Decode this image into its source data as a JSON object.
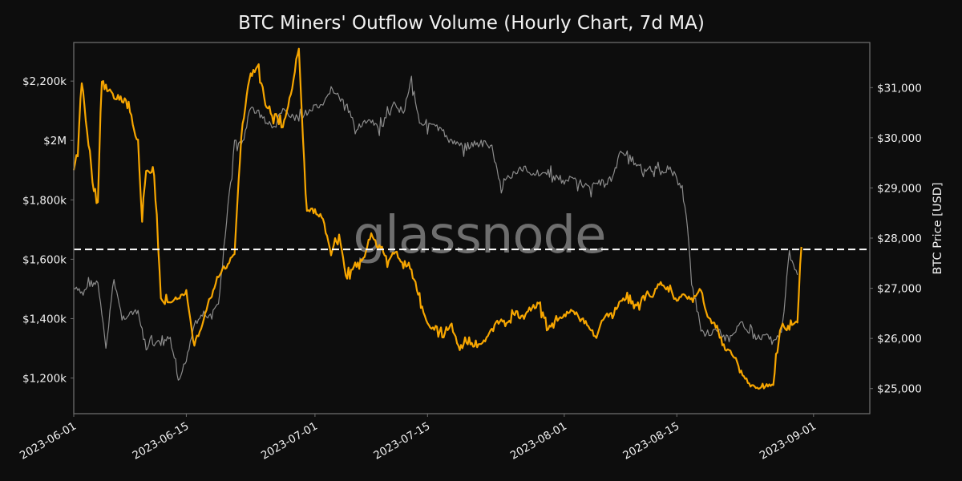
{
  "chart_data": {
    "type": "line",
    "title": "BTC Miners' Outflow Volume (Hourly Chart, 7d MA)",
    "xlabel": "",
    "ylabel_left": "",
    "ylabel_right": "BTC Price [USD]",
    "watermark": "glassnode",
    "x_tick_labels": [
      "2023-06-01",
      "2023-06-15",
      "2023-07-01",
      "2023-07-15",
      "2023-08-01",
      "2023-08-15",
      "2023-09-01"
    ],
    "y_left_tick_labels": [
      "$2,200k",
      "$2M",
      "$1,800k",
      "$1,600k",
      "$1,400k",
      "$1,200k"
    ],
    "y_left_tick_values": [
      2200000,
      2000000,
      1800000,
      1600000,
      1400000,
      1200000
    ],
    "y_right_tick_labels": [
      "$31,000",
      "$30,000",
      "$29,000",
      "$28,000",
      "$27,000",
      "$26,000",
      "$25,000"
    ],
    "y_right_tick_values": [
      31000,
      30000,
      29000,
      28000,
      27000,
      26000,
      25000
    ],
    "ylim_left": [
      1080000,
      2330000
    ],
    "ylim_right": [
      24500,
      31900
    ],
    "xlim": [
      "2023-06-01",
      "2023-09-08"
    ],
    "grid": false,
    "legend": "none",
    "reference_line": {
      "axis": "left",
      "value": 1633000,
      "style": "dashed",
      "color": "#ffffff"
    },
    "colors": {
      "background": "#0d0d0d",
      "outflow": "#f7a600",
      "price": "#8c8c8c",
      "frame": "#6b6b6b",
      "text": "#f0f0f0"
    },
    "series": [
      {
        "name": "Miners' Outflow Volume (7d MA)",
        "axis": "left",
        "unit": "USD",
        "color": "#f7a600",
        "x": [
          "2023-06-01",
          "2023-06-01T12",
          "2023-06-02",
          "2023-06-03",
          "2023-06-03T12",
          "2023-06-04",
          "2023-06-04T12",
          "2023-06-05",
          "2023-06-06",
          "2023-06-07",
          "2023-06-08",
          "2023-06-08T12",
          "2023-06-09",
          "2023-06-09T12",
          "2023-06-10",
          "2023-06-11",
          "2023-06-12",
          "2023-06-13",
          "2023-06-14",
          "2023-06-15",
          "2023-06-16",
          "2023-06-17",
          "2023-06-18",
          "2023-06-19",
          "2023-06-20",
          "2023-06-21",
          "2023-06-22",
          "2023-06-23",
          "2023-06-24",
          "2023-06-25",
          "2023-06-26",
          "2023-06-27",
          "2023-06-28",
          "2023-06-29",
          "2023-06-30",
          "2023-07-01",
          "2023-07-02",
          "2023-07-03",
          "2023-07-04",
          "2023-07-05",
          "2023-07-06",
          "2023-07-07",
          "2023-07-08",
          "2023-07-09",
          "2023-07-10",
          "2023-07-11",
          "2023-07-12",
          "2023-07-13",
          "2023-07-14",
          "2023-07-15",
          "2023-07-16",
          "2023-07-17",
          "2023-07-18",
          "2023-07-19",
          "2023-07-20",
          "2023-07-21",
          "2023-07-22",
          "2023-07-23",
          "2023-07-24",
          "2023-07-25",
          "2023-07-26",
          "2023-07-27",
          "2023-07-28",
          "2023-07-29",
          "2023-07-30",
          "2023-07-31",
          "2023-08-01",
          "2023-08-02",
          "2023-08-03",
          "2023-08-04",
          "2023-08-05",
          "2023-08-06",
          "2023-08-07",
          "2023-08-08",
          "2023-08-09",
          "2023-08-10",
          "2023-08-11",
          "2023-08-12",
          "2023-08-13",
          "2023-08-14",
          "2023-08-15",
          "2023-08-16",
          "2023-08-17",
          "2023-08-18",
          "2023-08-19",
          "2023-08-20",
          "2023-08-21",
          "2023-08-22",
          "2023-08-23",
          "2023-08-24",
          "2023-08-25",
          "2023-08-26",
          "2023-08-27",
          "2023-08-28",
          "2023-08-29",
          "2023-08-30",
          "2023-08-30T12"
        ],
        "values": [
          1900000,
          1950000,
          2200000,
          1960000,
          1820000,
          1790000,
          2200000,
          2180000,
          2150000,
          2140000,
          2120000,
          2030000,
          2000000,
          1730000,
          1900000,
          1880000,
          1460000,
          1450000,
          1470000,
          1490000,
          1310000,
          1380000,
          1470000,
          1540000,
          1580000,
          1620000,
          2050000,
          2220000,
          2250000,
          2110000,
          2080000,
          2050000,
          2150000,
          2310000,
          1770000,
          1760000,
          1740000,
          1620000,
          1680000,
          1540000,
          1580000,
          1600000,
          1680000,
          1640000,
          1600000,
          1620000,
          1590000,
          1560000,
          1480000,
          1380000,
          1370000,
          1340000,
          1380000,
          1300000,
          1320000,
          1300000,
          1320000,
          1370000,
          1390000,
          1380000,
          1420000,
          1400000,
          1440000,
          1450000,
          1360000,
          1400000,
          1410000,
          1430000,
          1400000,
          1380000,
          1340000,
          1410000,
          1410000,
          1460000,
          1460000,
          1450000,
          1470000,
          1480000,
          1520000,
          1500000,
          1460000,
          1480000,
          1460000,
          1500000,
          1400000,
          1370000,
          1300000,
          1280000,
          1220000,
          1180000,
          1160000,
          1180000,
          1180000,
          1380000,
          1360000,
          1390000,
          1650000
        ]
      },
      {
        "name": "BTC Price",
        "axis": "right",
        "unit": "USD",
        "color": "#8c8c8c",
        "x": [
          "2023-06-01",
          "2023-06-02",
          "2023-06-03",
          "2023-06-04",
          "2023-06-05",
          "2023-06-06",
          "2023-06-07",
          "2023-06-08",
          "2023-06-09",
          "2023-06-10",
          "2023-06-11",
          "2023-06-12",
          "2023-06-13",
          "2023-06-14",
          "2023-06-15",
          "2023-06-16",
          "2023-06-17",
          "2023-06-18",
          "2023-06-19",
          "2023-06-20",
          "2023-06-21",
          "2023-06-22",
          "2023-06-23",
          "2023-06-24",
          "2023-06-25",
          "2023-06-26",
          "2023-06-27",
          "2023-06-28",
          "2023-06-29",
          "2023-06-30",
          "2023-07-01",
          "2023-07-02",
          "2023-07-03",
          "2023-07-04",
          "2023-07-05",
          "2023-07-06",
          "2023-07-07",
          "2023-07-08",
          "2023-07-09",
          "2023-07-10",
          "2023-07-11",
          "2023-07-12",
          "2023-07-13",
          "2023-07-14",
          "2023-07-15",
          "2023-07-16",
          "2023-07-17",
          "2023-07-18",
          "2023-07-19",
          "2023-07-20",
          "2023-07-21",
          "2023-07-22",
          "2023-07-23",
          "2023-07-24",
          "2023-07-25",
          "2023-07-26",
          "2023-07-27",
          "2023-07-28",
          "2023-07-29",
          "2023-07-30",
          "2023-07-31",
          "2023-08-01",
          "2023-08-02",
          "2023-08-03",
          "2023-08-04",
          "2023-08-05",
          "2023-08-06",
          "2023-08-07",
          "2023-08-08",
          "2023-08-09",
          "2023-08-10",
          "2023-08-11",
          "2023-08-12",
          "2023-08-13",
          "2023-08-14",
          "2023-08-15",
          "2023-08-16",
          "2023-08-17",
          "2023-08-18",
          "2023-08-19",
          "2023-08-20",
          "2023-08-21",
          "2023-08-22",
          "2023-08-23",
          "2023-08-24",
          "2023-08-25",
          "2023-08-26",
          "2023-08-27",
          "2023-08-28",
          "2023-08-29",
          "2023-08-30"
        ],
        "values": [
          27000,
          26900,
          27100,
          27100,
          25800,
          27200,
          26400,
          26500,
          26500,
          25800,
          25900,
          25900,
          26000,
          25100,
          25600,
          26300,
          26500,
          26400,
          26700,
          28300,
          29900,
          29900,
          30600,
          30500,
          30300,
          30200,
          30600,
          30400,
          30400,
          30500,
          30600,
          30600,
          31000,
          30800,
          30600,
          30200,
          30300,
          30300,
          30200,
          30400,
          30700,
          30500,
          31200,
          30300,
          30300,
          30200,
          30100,
          29900,
          29900,
          29800,
          29900,
          29900,
          29800,
          29100,
          29200,
          29300,
          29400,
          29300,
          29300,
          29300,
          29200,
          29100,
          29200,
          29100,
          29000,
          29100,
          29100,
          29200,
          29700,
          29700,
          29400,
          29400,
          29400,
          29300,
          29400,
          29200,
          28700,
          27000,
          26200,
          26100,
          26200,
          26000,
          26000,
          26400,
          26100,
          26000,
          26100,
          26000,
          26100,
          27700,
          27300
        ]
      }
    ]
  }
}
